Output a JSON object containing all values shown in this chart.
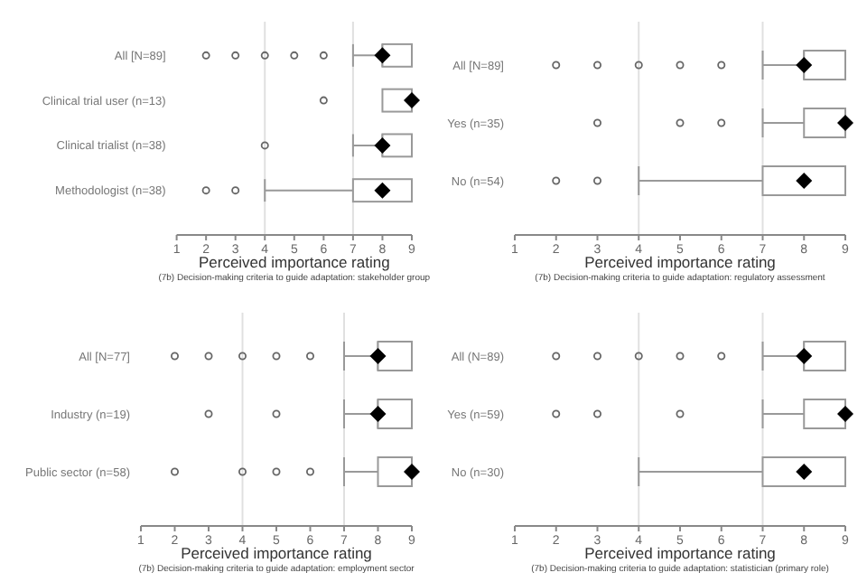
{
  "chart_data": [
    {
      "type": "box",
      "orientation": "horizontal",
      "categories": [
        "All [N=89]",
        "Clinical trial user (n=13)",
        "Clinical trialist (n=38)",
        "Methodologist (n=38)"
      ],
      "boxes": [
        {
          "low": 7,
          "q1": 8,
          "median": 8,
          "q3": 9,
          "high": 9,
          "mean": 8,
          "outliers": [
            2,
            3,
            4,
            5,
            6
          ]
        },
        {
          "low": 8,
          "q1": 8,
          "median": 9,
          "q3": 9,
          "high": 9,
          "mean": 9,
          "outliers": [
            6
          ]
        },
        {
          "low": 7,
          "q1": 8,
          "median": 8,
          "q3": 9,
          "high": 9,
          "mean": 8,
          "outliers": [
            4
          ]
        },
        {
          "low": 4,
          "q1": 7,
          "median": 8,
          "q3": 9,
          "high": 9,
          "mean": 8,
          "outliers": [
            2,
            3
          ]
        }
      ],
      "xlim": [
        1,
        9
      ],
      "xticks": [
        1,
        2,
        3,
        4,
        5,
        6,
        7,
        8,
        9
      ],
      "xlabel": "Perceived importance rating",
      "ref_lines": [
        {
          "axis": "x",
          "value": 4,
          "color": "#e0e0e0"
        },
        {
          "axis": "x",
          "value": 7,
          "color": "#e0e0e0"
        }
      ],
      "annotations": [
        "(7b) Decision-making criteria to guide adaptation: stakeholder group"
      ]
    },
    {
      "type": "box",
      "orientation": "horizontal",
      "categories": [
        "All [N=89]",
        "Yes (n=35)",
        "No (n=54)"
      ],
      "boxes": [
        {
          "low": 7,
          "q1": 8,
          "median": 8,
          "q3": 9,
          "high": 9,
          "mean": 8,
          "outliers": [
            2,
            3,
            4,
            5,
            6
          ]
        },
        {
          "low": 7,
          "q1": 8,
          "median": 9,
          "q3": 9,
          "high": 9,
          "mean": 9,
          "outliers": [
            3,
            5,
            6
          ]
        },
        {
          "low": 4,
          "q1": 7,
          "median": 8,
          "q3": 9,
          "high": 9,
          "mean": 8,
          "outliers": [
            2,
            3
          ]
        }
      ],
      "xlim": [
        1,
        9
      ],
      "xticks": [
        1,
        2,
        3,
        4,
        5,
        6,
        7,
        8,
        9
      ],
      "xlabel": "Perceived importance rating",
      "ref_lines": [
        {
          "axis": "x",
          "value": 4,
          "color": "#e0e0e0"
        },
        {
          "axis": "x",
          "value": 7,
          "color": "#e0e0e0"
        }
      ],
      "annotations": [
        "(7b) Decision-making criteria to guide adaptation: regulatory assessment"
      ]
    },
    {
      "type": "box",
      "orientation": "horizontal",
      "categories": [
        "All [N=77]",
        "Industry (n=19)",
        "Public sector (n=58)"
      ],
      "boxes": [
        {
          "low": 7,
          "q1": 8,
          "median": 8,
          "q3": 9,
          "high": 9,
          "mean": 8,
          "outliers": [
            2,
            3,
            4,
            5,
            6
          ]
        },
        {
          "low": 7,
          "q1": 8,
          "median": 8,
          "q3": 9,
          "high": 9,
          "mean": 8,
          "outliers": [
            3,
            5
          ]
        },
        {
          "low": 7,
          "q1": 8,
          "median": 9,
          "q3": 9,
          "high": 9,
          "mean": 9,
          "outliers": [
            2,
            4,
            5,
            6
          ]
        }
      ],
      "xlim": [
        1,
        9
      ],
      "xticks": [
        1,
        2,
        3,
        4,
        5,
        6,
        7,
        8,
        9
      ],
      "xlabel": "Perceived importance rating",
      "ref_lines": [
        {
          "axis": "x",
          "value": 4,
          "color": "#e0e0e0"
        },
        {
          "axis": "x",
          "value": 7,
          "color": "#e0e0e0"
        }
      ],
      "annotations": [
        "(7b) Decision-making criteria to guide adaptation: employment sector"
      ]
    },
    {
      "type": "box",
      "orientation": "horizontal",
      "categories": [
        "All (N=89)",
        "Yes (n=59)",
        "No (n=30)"
      ],
      "boxes": [
        {
          "low": 7,
          "q1": 8,
          "median": 8,
          "q3": 9,
          "high": 9,
          "mean": 8,
          "outliers": [
            2,
            3,
            4,
            5,
            6
          ]
        },
        {
          "low": 7,
          "q1": 8,
          "median": 9,
          "q3": 9,
          "high": 9,
          "mean": 9,
          "outliers": [
            2,
            3,
            5
          ]
        },
        {
          "low": 4,
          "q1": 7,
          "median": 8,
          "q3": 9,
          "high": 9,
          "mean": 8
        }
      ],
      "xlim": [
        1,
        9
      ],
      "xticks": [
        1,
        2,
        3,
        4,
        5,
        6,
        7,
        8,
        9
      ],
      "xlabel": "Perceived importance rating",
      "ref_lines": [
        {
          "axis": "x",
          "value": 4,
          "color": "#e0e0e0"
        },
        {
          "axis": "x",
          "value": 7,
          "color": "#e0e0e0"
        }
      ],
      "annotations": [
        "(7b) Decision-making criteria to guide adaptation: statistician (primary role)"
      ]
    }
  ]
}
